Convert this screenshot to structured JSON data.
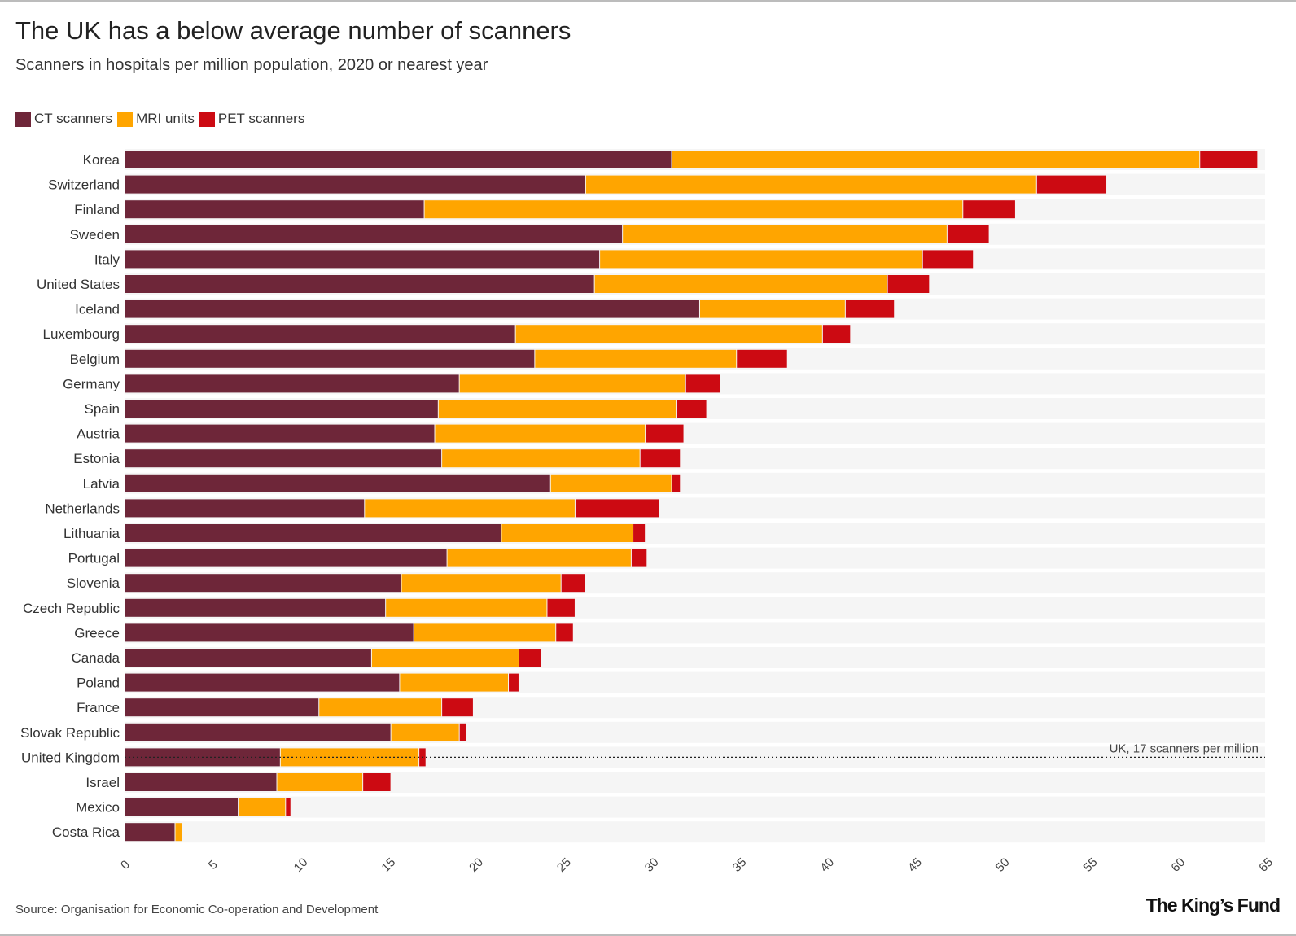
{
  "header": {
    "title": "The UK has a below average number of scanners",
    "subtitle": "Scanners in hospitals per million population, 2020 or nearest year"
  },
  "legend": [
    {
      "label": "CT scanners",
      "color": "#6e2639"
    },
    {
      "label": "MRI units",
      "color": "#ffa500"
    },
    {
      "label": "PET scanners",
      "color": "#cc0a12"
    }
  ],
  "footer": {
    "source": "Source: Organisation for Economic Co-operation and Development",
    "brand": "The King’s Fund"
  },
  "chart_data": {
    "type": "bar",
    "orientation": "horizontal",
    "stacked": true,
    "categories": [
      "Korea",
      "Switzerland",
      "Finland",
      "Sweden",
      "Italy",
      "United States",
      "Iceland",
      "Luxembourg",
      "Belgium",
      "Germany",
      "Spain",
      "Austria",
      "Estonia",
      "Latvia",
      "Netherlands",
      "Lithuania",
      "Portugal",
      "Slovenia",
      "Czech Republic",
      "Greece",
      "Canada",
      "Poland",
      "France",
      "Slovak Republic",
      "United Kingdom",
      "Israel",
      "Mexico",
      "Costa Rica"
    ],
    "series": [
      {
        "name": "CT scanners",
        "color": "#6e2639",
        "values": [
          31.2,
          26.3,
          17.1,
          28.4,
          27.1,
          26.8,
          32.8,
          22.3,
          23.4,
          19.1,
          17.9,
          17.7,
          18.1,
          24.3,
          13.7,
          21.5,
          18.4,
          15.8,
          14.9,
          16.5,
          14.1,
          15.7,
          11.1,
          15.2,
          8.9,
          8.7,
          6.5,
          2.9
        ]
      },
      {
        "name": "MRI units",
        "color": "#ffa500",
        "values": [
          30.1,
          25.7,
          30.7,
          18.5,
          18.4,
          16.7,
          8.3,
          17.5,
          11.5,
          12.9,
          13.6,
          12.0,
          11.3,
          6.9,
          12.0,
          7.5,
          10.5,
          9.1,
          9.2,
          8.1,
          8.4,
          6.2,
          7.0,
          3.9,
          7.9,
          4.9,
          2.7,
          0.4
        ]
      },
      {
        "name": "PET scanners",
        "color": "#cc0a12",
        "values": [
          3.3,
          4.0,
          3.0,
          2.4,
          2.9,
          2.4,
          2.8,
          1.6,
          2.9,
          2.0,
          1.7,
          2.2,
          2.3,
          0.5,
          4.8,
          0.7,
          0.9,
          1.4,
          1.6,
          1.0,
          1.3,
          0.6,
          1.8,
          0.4,
          0.4,
          1.6,
          0.3,
          0
        ]
      }
    ],
    "xlim": [
      0,
      65
    ],
    "xticks": [
      0,
      5,
      10,
      15,
      20,
      25,
      30,
      35,
      40,
      45,
      50,
      55,
      60,
      65
    ],
    "grid": false,
    "reference_line": {
      "value": 17.2,
      "category": "United Kingdom",
      "label": "UK, 17 scanners per million",
      "style": "dotted"
    },
    "legend_position": "top-left"
  }
}
